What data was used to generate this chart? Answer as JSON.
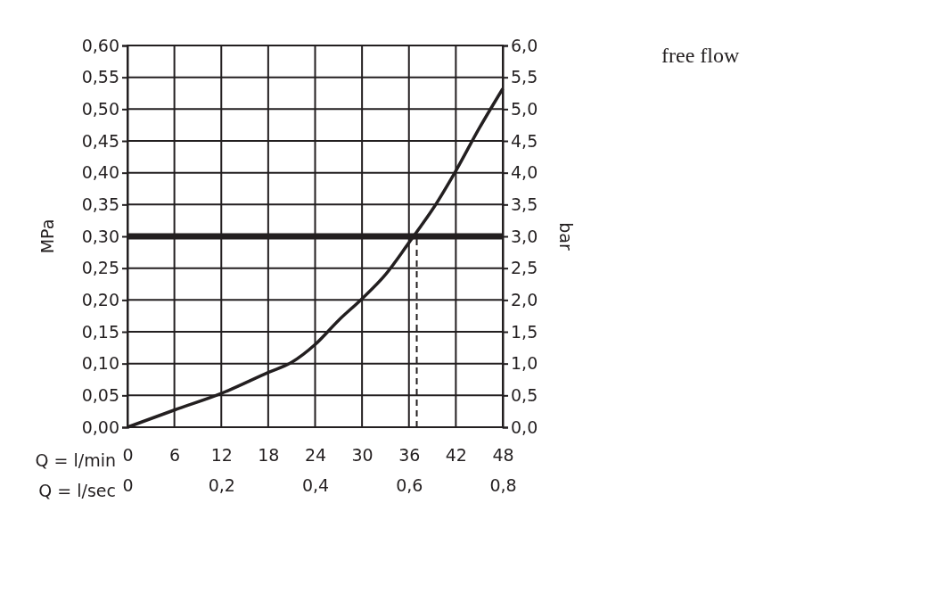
{
  "chart_data": {
    "type": "line",
    "title": "free flow",
    "xlabel": "Q = l/min",
    "x2label": "Q = l/sec",
    "ylabel": "MPa",
    "y2label": "bar",
    "x": [
      0,
      6,
      12,
      18,
      21,
      24,
      27,
      30,
      33,
      36,
      37,
      39,
      42,
      45,
      48
    ],
    "series": [
      {
        "color": "#231f20",
        "values": [
          0,
          0.027,
          0.053,
          0.086,
          0.102,
          0.13,
          0.168,
          0.202,
          0.24,
          0.29,
          0.307,
          0.342,
          0.403,
          0.47,
          0.532
        ]
      }
    ],
    "xlim": [
      0,
      48
    ],
    "xticks": [
      0,
      6,
      12,
      18,
      24,
      30,
      36,
      42,
      48
    ],
    "x2lim": [
      0,
      0.8
    ],
    "x2ticks": [
      0,
      {
        "value": 0.2,
        "label": "0,2"
      },
      {
        "value": 0.4,
        "label": "0,4"
      },
      {
        "value": 0.6,
        "label": "0,6"
      },
      {
        "value": 0.8,
        "label": "0,8"
      }
    ],
    "ylim": [
      0,
      0.6
    ],
    "yticks": [
      {
        "value": 0,
        "label": "0,00"
      },
      {
        "value": 0.05,
        "label": "0,05"
      },
      {
        "value": 0.1,
        "label": "0,10"
      },
      {
        "value": 0.15,
        "label": "0,15"
      },
      {
        "value": 0.2,
        "label": "0,20"
      },
      {
        "value": 0.25,
        "label": "0,25"
      },
      {
        "value": 0.3,
        "label": "0,30"
      },
      {
        "value": 0.35,
        "label": "0,35"
      },
      {
        "value": 0.4,
        "label": "0,40"
      },
      {
        "value": 0.45,
        "label": "0,45"
      },
      {
        "value": 0.5,
        "label": "0,50"
      },
      {
        "value": 0.55,
        "label": "0,55"
      },
      {
        "value": 0.6,
        "label": "0,60"
      }
    ],
    "y2lim": [
      0,
      6
    ],
    "y2ticks": [
      {
        "value": 0,
        "label": "0,0"
      },
      {
        "value": 0.5,
        "label": "0,5"
      },
      {
        "value": 1,
        "label": "1,0"
      },
      {
        "value": 1.5,
        "label": "1,5"
      },
      {
        "value": 2,
        "label": "2,0"
      },
      {
        "value": 2.5,
        "label": "2,5"
      },
      {
        "value": 3,
        "label": "3,0"
      },
      {
        "value": 3.5,
        "label": "3,5"
      },
      {
        "value": 4,
        "label": "4,0"
      },
      {
        "value": 4.5,
        "label": "4,5"
      },
      {
        "value": 5,
        "label": "5,0"
      },
      {
        "value": 5.5,
        "label": "5,5"
      },
      {
        "value": 6,
        "label": "6,0"
      }
    ],
    "ref_lines": [
      {
        "axis": "y",
        "value": 0.3,
        "color": "#231f20",
        "line_style": "solid"
      },
      {
        "axis": "x",
        "value": 37,
        "color": "#231f20",
        "line_style": "dashed"
      }
    ],
    "grid": true,
    "line_style": "solid",
    "marker": "none"
  }
}
